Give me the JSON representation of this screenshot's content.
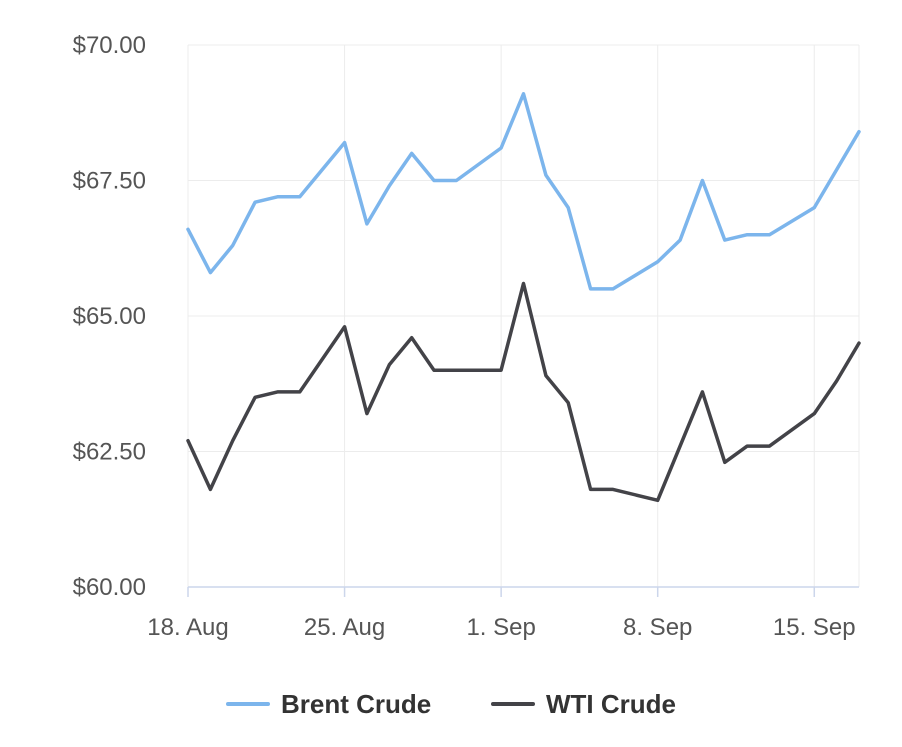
{
  "chart_data": {
    "type": "line",
    "title": "",
    "xlabel": "",
    "ylabel": "",
    "x": [
      "2025-08-18",
      "2025-08-19",
      "2025-08-20",
      "2025-08-21",
      "2025-08-22",
      "2025-08-23",
      "2025-08-25",
      "2025-08-26",
      "2025-08-27",
      "2025-08-28",
      "2025-08-29",
      "2025-08-30",
      "2025-09-01",
      "2025-09-02",
      "2025-09-03",
      "2025-09-04",
      "2025-09-05",
      "2025-09-06",
      "2025-09-08",
      "2025-09-09",
      "2025-09-10",
      "2025-09-11",
      "2025-09-12",
      "2025-09-13",
      "2025-09-15",
      "2025-09-16",
      "2025-09-17"
    ],
    "xlim": [
      "2025-08-18",
      "2025-09-17"
    ],
    "x_ticks": [
      "2025-08-18",
      "2025-08-25",
      "2025-09-01",
      "2025-09-08",
      "2025-09-15"
    ],
    "x_tick_labels": [
      "18. Aug",
      "25. Aug",
      "1. Sep",
      "8. Sep",
      "15. Sep"
    ],
    "ylim": [
      60,
      70
    ],
    "y_ticks": [
      60,
      62.5,
      65,
      67.5,
      70
    ],
    "y_tick_labels": [
      "$60.00",
      "$62.50",
      "$65.00",
      "$67.50",
      "$70.00"
    ],
    "grid": true,
    "legend_position": "bottom",
    "series": [
      {
        "name": "Brent Crude",
        "color": "#7cb5ec",
        "values": [
          66.6,
          65.8,
          66.3,
          67.1,
          67.2,
          67.2,
          68.2,
          66.7,
          67.4,
          68.0,
          67.5,
          67.5,
          68.1,
          69.1,
          67.6,
          67.0,
          65.5,
          65.5,
          66.0,
          66.4,
          67.5,
          66.4,
          66.5,
          66.5,
          67.0,
          67.7,
          68.4
        ]
      },
      {
        "name": "WTI Crude",
        "color": "#434348",
        "values": [
          62.7,
          61.8,
          62.7,
          63.5,
          63.6,
          63.6,
          64.8,
          63.2,
          64.1,
          64.6,
          64.0,
          64.0,
          64.0,
          65.6,
          63.9,
          63.4,
          61.8,
          61.8,
          61.6,
          62.6,
          63.6,
          62.3,
          62.6,
          62.6,
          63.2,
          63.8,
          64.5
        ]
      }
    ]
  }
}
